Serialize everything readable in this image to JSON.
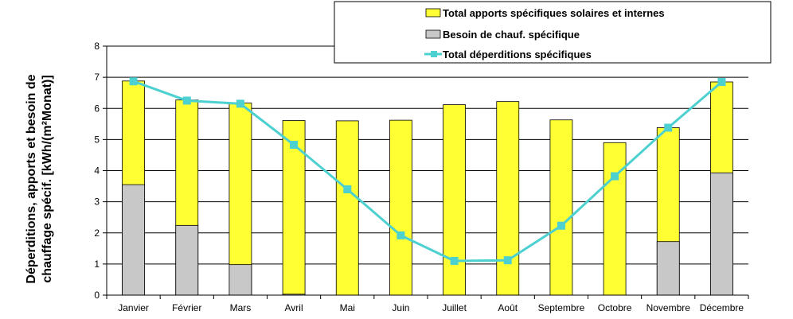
{
  "chart_data": {
    "type": "bar",
    "categories": [
      "Janvier",
      "Février",
      "Mars",
      "Avril",
      "Mai",
      "Juin",
      "Juillet",
      "Août",
      "Septembre",
      "Octobre",
      "Novembre",
      "Décembre"
    ],
    "series": [
      {
        "name": "Total apports spécifiques solaires et internes",
        "kind": "bar",
        "color": "#FFFF33",
        "values": [
          6.88,
          6.27,
          6.17,
          5.61,
          5.6,
          5.62,
          6.12,
          6.22,
          5.63,
          4.9,
          5.38,
          6.85
        ]
      },
      {
        "name": "Besoin de chauf. spécifique",
        "kind": "bar",
        "color": "#C8C8C8",
        "values": [
          3.55,
          2.24,
          0.98,
          0.03,
          0,
          0,
          0,
          0,
          0,
          0,
          1.72,
          3.93
        ]
      },
      {
        "name": "Total déperditions spécifiques",
        "kind": "line",
        "color": "#4DD0D0",
        "values": [
          6.87,
          6.25,
          6.15,
          4.83,
          3.4,
          1.92,
          1.1,
          1.12,
          2.23,
          3.82,
          5.38,
          6.85
        ]
      }
    ],
    "ylabel_lines": [
      "Déperditions, apports et besoin de",
      "chauffage spécif. [kWh/(m²Monat)]"
    ],
    "xlabel": "",
    "ylim": [
      0,
      8
    ],
    "yticks": [
      0,
      1,
      2,
      3,
      4,
      5,
      6,
      7,
      8
    ],
    "grid": true,
    "legend_position": "top-right"
  }
}
